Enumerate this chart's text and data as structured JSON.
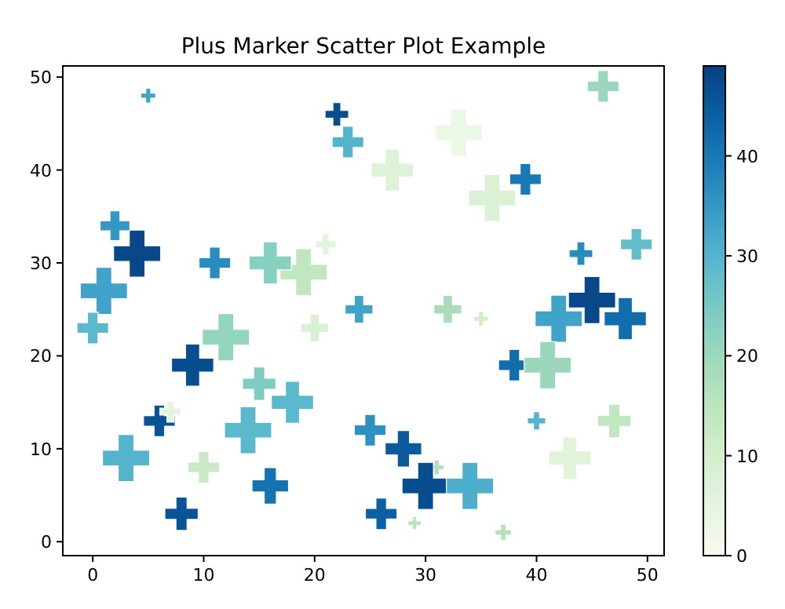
{
  "chart_data": {
    "type": "scatter",
    "title": "Plus Marker Scatter Plot Example",
    "marker": "cross",
    "xlim": [
      -2.7,
      51.5
    ],
    "ylim": [
      -1.5,
      51.2
    ],
    "xticks": [
      0,
      10,
      20,
      30,
      40,
      50
    ],
    "yticks": [
      0,
      10,
      20,
      30,
      40,
      50
    ],
    "clim": [
      0,
      49
    ],
    "cticks": [
      0,
      10,
      20,
      30,
      40
    ],
    "grid": false,
    "x": [
      5,
      22,
      23,
      33,
      46,
      27,
      39,
      36,
      44,
      49,
      42,
      48,
      45,
      38,
      41,
      40,
      47,
      43,
      25,
      28,
      31,
      30,
      34,
      26,
      29,
      37,
      24,
      32,
      35,
      20,
      21,
      19,
      16,
      11,
      4,
      2,
      1,
      0,
      12,
      9,
      15,
      18,
      14,
      6,
      7,
      3,
      10,
      16,
      8
    ],
    "values": [
      48,
      46,
      43,
      44,
      49,
      40,
      39,
      37,
      31,
      32,
      24,
      24,
      26,
      19,
      19,
      13,
      13,
      9,
      12,
      10,
      8,
      6,
      6,
      3,
      2,
      1,
      25,
      25,
      24,
      23,
      32,
      29,
      30,
      30,
      31,
      34,
      27,
      23,
      22,
      19,
      17,
      15,
      12,
      13,
      14,
      9,
      8,
      6,
      3
    ],
    "cvalues": [
      33,
      47,
      30,
      3,
      20,
      7,
      40,
      8,
      37,
      28,
      33,
      42,
      48,
      42,
      20,
      30,
      14,
      6,
      36,
      45,
      17,
      47,
      31,
      44,
      15,
      16,
      33,
      18,
      10,
      8,
      5,
      14,
      23,
      37,
      48,
      35,
      33,
      29,
      21,
      47,
      24,
      29,
      29,
      46,
      5,
      30,
      12,
      41,
      46
    ],
    "sizes": [
      0.1,
      0.25,
      0.45,
      1,
      0.45,
      0.8,
      0.45,
      1,
      0.25,
      0.45,
      1,
      0.8,
      1,
      0.45,
      1,
      0.15,
      0.5,
      0.8,
      0.45,
      0.6,
      0.1,
      1,
      1,
      0.45,
      0.08,
      0.12,
      0.35,
      0.35,
      0.1,
      0.35,
      0.2,
      1,
      0.8,
      0.45,
      1,
      0.4,
      1,
      0.45,
      1,
      0.8,
      0.5,
      0.8,
      1,
      0.45,
      0.2,
      1,
      0.45,
      0.6,
      0.5
    ]
  }
}
